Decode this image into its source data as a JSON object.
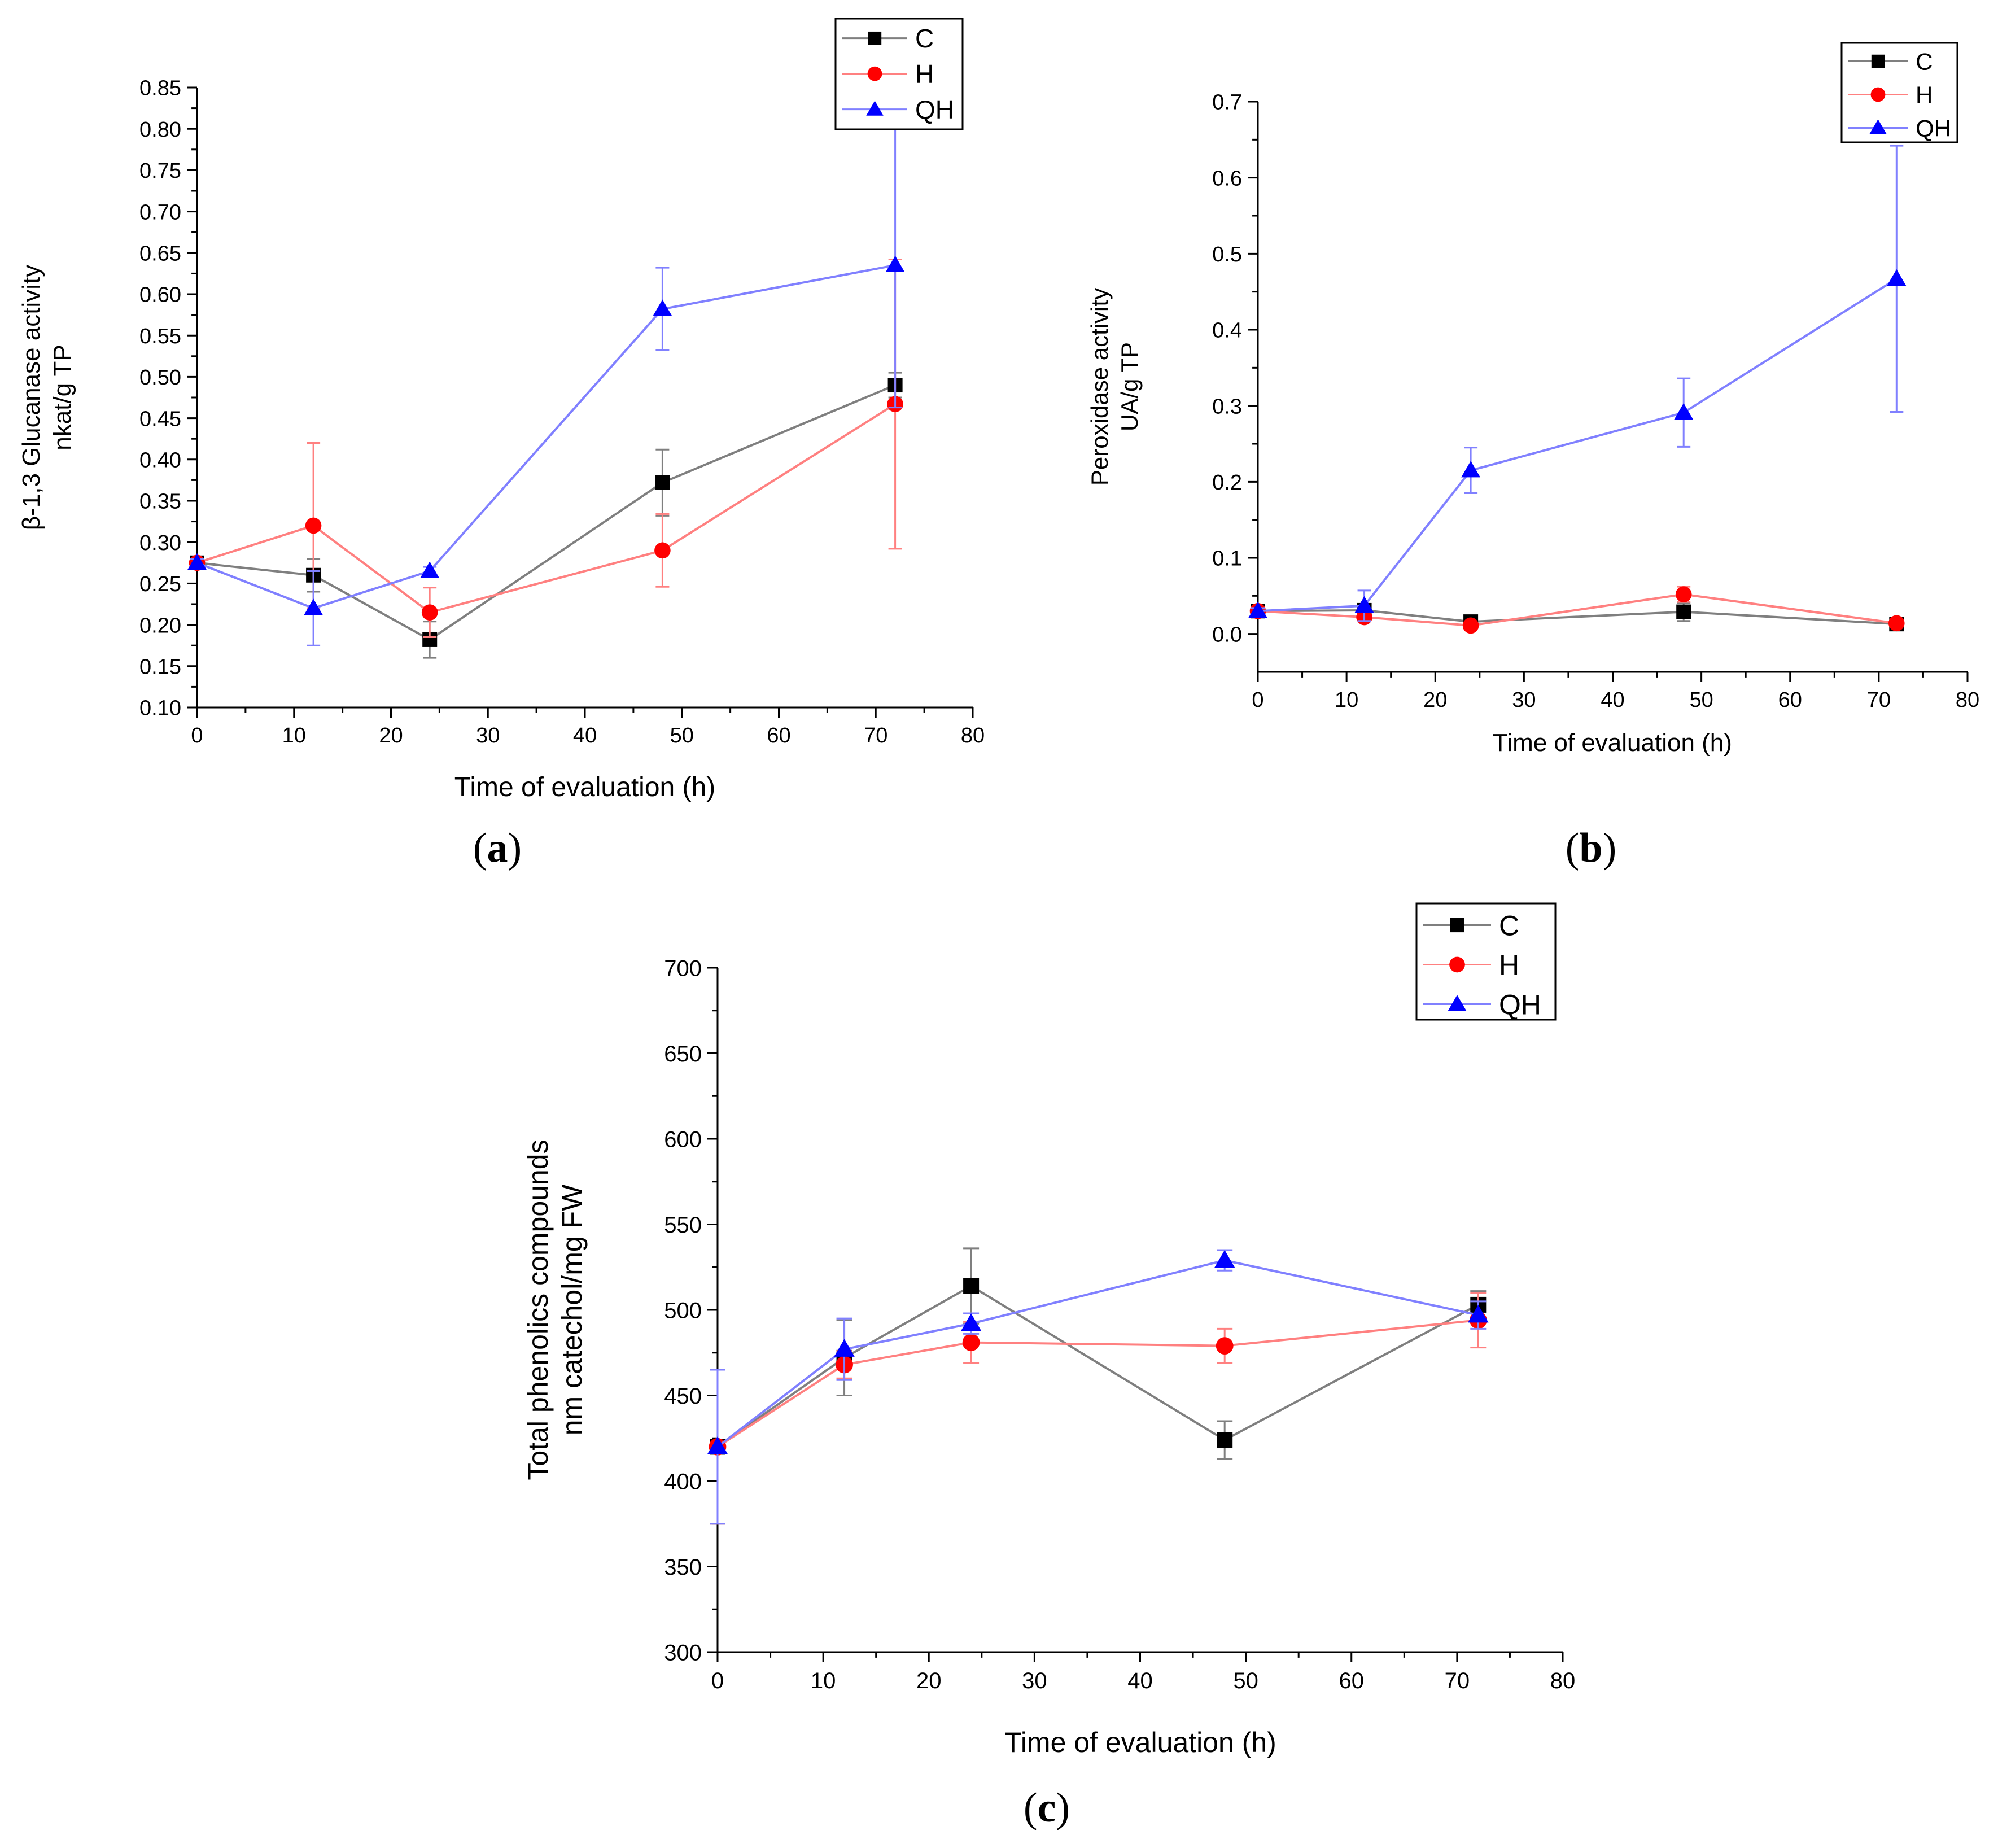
{
  "colors": {
    "C": "#000000",
    "H": "#ff0000",
    "QH": "#0000ff",
    "C_line": "#7f7f7f",
    "H_line": "#ff8080",
    "QH_line": "#8080ff"
  },
  "chart_data": [
    {
      "id": "a",
      "panel_label": "a",
      "type": "line",
      "xlabel": "Time of evaluation (h)",
      "ylabel_lines": [
        "β-1,3 Glucanase activity",
        "nkat/g TP"
      ],
      "xlim": [
        0,
        80
      ],
      "ylim": [
        0.1,
        0.85
      ],
      "xticks": [
        "0",
        "10",
        "20",
        "30",
        "40",
        "50",
        "60",
        "70",
        "80"
      ],
      "yticks": [
        "0.10",
        "0.15",
        "0.20",
        "0.25",
        "0.30",
        "0.35",
        "0.40",
        "0.45",
        "0.50",
        "0.55",
        "0.60",
        "0.65",
        "0.70",
        "0.75",
        "0.80",
        "0.85"
      ],
      "legend_position": "top-right",
      "x": [
        0,
        12,
        24,
        48,
        72
      ],
      "series": [
        {
          "name": "C",
          "marker": "square",
          "values": [
            0.275,
            0.26,
            0.182,
            0.372,
            0.49
          ],
          "errors": [
            0.005,
            0.02,
            0.022,
            0.04,
            0.015
          ]
        },
        {
          "name": "H",
          "marker": "circle",
          "values": [
            0.275,
            0.32,
            0.215,
            0.29,
            0.467
          ],
          "errors": [
            0.005,
            0.1,
            0.03,
            0.044,
            0.175
          ]
        },
        {
          "name": "QH",
          "marker": "triangle",
          "values": [
            0.275,
            0.22,
            0.265,
            0.582,
            0.635
          ],
          "errors": [
            0.005,
            0.045,
            0.005,
            0.05,
            0.172
          ]
        }
      ]
    },
    {
      "id": "b",
      "panel_label": "b",
      "type": "line",
      "xlabel": "Time of evaluation (h)",
      "ylabel_lines": [
        "Peroxidase activity",
        "UA/g TP"
      ],
      "xlim": [
        0,
        80
      ],
      "ylim": [
        -0.05,
        0.7
      ],
      "xticks": [
        "0",
        "10",
        "20",
        "30",
        "40",
        "50",
        "60",
        "70",
        "80"
      ],
      "yticks": [
        "0.0",
        "0.1",
        "0.2",
        "0.3",
        "0.4",
        "0.5",
        "0.6",
        "0.7"
      ],
      "ytick_values": [
        0.0,
        0.1,
        0.2,
        0.3,
        0.4,
        0.5,
        0.6,
        0.7
      ],
      "legend_position": "top-right",
      "x": [
        0,
        12,
        24,
        48,
        72
      ],
      "series": [
        {
          "name": "C",
          "marker": "square",
          "values": [
            0.03,
            0.031,
            0.016,
            0.029,
            0.013
          ],
          "errors": [
            0.004,
            0.005,
            0.004,
            0.012,
            0.004
          ]
        },
        {
          "name": "H",
          "marker": "circle",
          "values": [
            0.03,
            0.022,
            0.011,
            0.052,
            0.014
          ],
          "errors": [
            0.004,
            0.005,
            0.004,
            0.01,
            0.004
          ]
        },
        {
          "name": "QH",
          "marker": "triangle",
          "values": [
            0.03,
            0.037,
            0.215,
            0.291,
            0.467
          ],
          "errors": [
            0.004,
            0.02,
            0.03,
            0.045,
            0.175
          ]
        }
      ]
    },
    {
      "id": "c",
      "panel_label": "c",
      "type": "line",
      "xlabel": "Time of evaluation (h)",
      "ylabel_lines": [
        "Total phenolics compounds",
        "nm catechol/mg FW"
      ],
      "xlim": [
        0,
        80
      ],
      "ylim": [
        300,
        700
      ],
      "xticks": [
        "0",
        "10",
        "20",
        "30",
        "40",
        "50",
        "60",
        "70",
        "80"
      ],
      "yticks": [
        "300",
        "350",
        "400",
        "450",
        "500",
        "550",
        "600",
        "650",
        "700"
      ],
      "legend_position": "top-right",
      "x": [
        0,
        12,
        24,
        48,
        72
      ],
      "series": [
        {
          "name": "C",
          "marker": "square",
          "values": [
            420,
            472,
            514,
            424,
            503
          ],
          "errors": [
            45,
            22,
            22,
            11,
            8
          ]
        },
        {
          "name": "H",
          "marker": "circle",
          "values": [
            420,
            468,
            481,
            479,
            494
          ],
          "errors": [
            45,
            8,
            12,
            10,
            16
          ]
        },
        {
          "name": "QH",
          "marker": "triangle",
          "values": [
            420,
            477,
            492,
            529,
            497
          ],
          "errors": [
            45,
            18,
            6,
            6,
            8
          ]
        }
      ]
    }
  ]
}
